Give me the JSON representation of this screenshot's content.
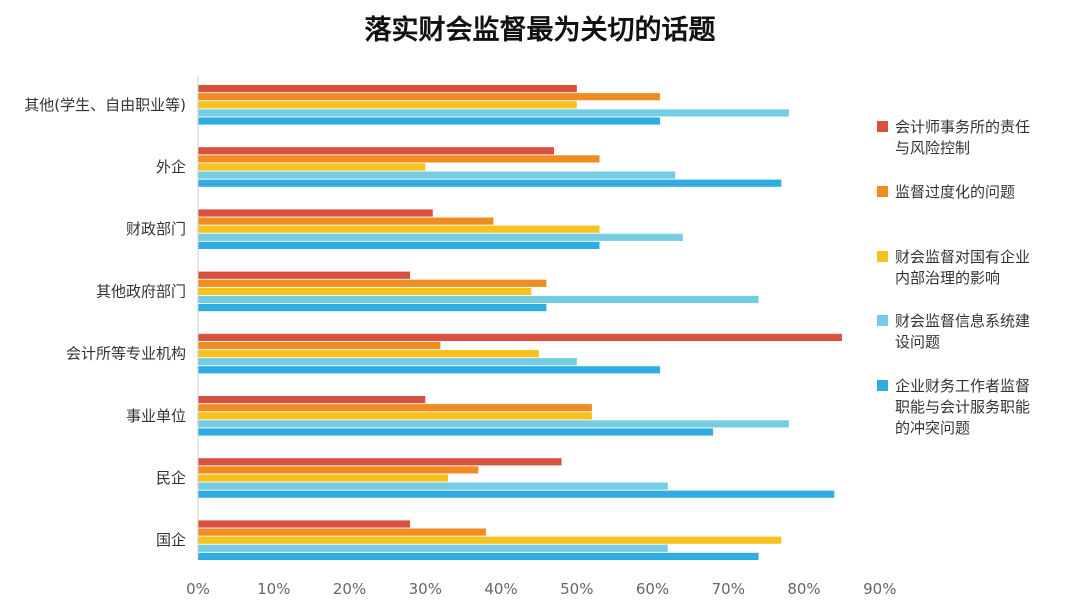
{
  "chart_data": {
    "type": "bar",
    "orientation": "horizontal",
    "title": "落实财会监督最为关切的话题",
    "categories": [
      "其他(学生、自由职业等)",
      "外企",
      "财政部门",
      "其他政府部门",
      "会计所等专业机构",
      "事业单位",
      "民企",
      "国企"
    ],
    "xlim": [
      0,
      90
    ],
    "x_ticks": [
      "0%",
      "10%",
      "20%",
      "30%",
      "40%",
      "50%",
      "60%",
      "70%",
      "80%",
      "90%"
    ],
    "legend_position": "right",
    "series": [
      {
        "name_lines": [
          "会计师事务所的责任",
          "与风险控制"
        ],
        "color": "#d9503f",
        "values": [
          50,
          47,
          31,
          28,
          85,
          30,
          48,
          28
        ]
      },
      {
        "name_lines": [
          "监督过度化的问题"
        ],
        "color": "#f18c22",
        "values": [
          61,
          53,
          39,
          46,
          32,
          52,
          37,
          38
        ]
      },
      {
        "name_lines": [
          "财会监督对国有企业",
          "内部治理的影响"
        ],
        "color": "#f7c21e",
        "values": [
          50,
          30,
          53,
          44,
          45,
          52,
          33,
          77
        ]
      },
      {
        "name_lines": [
          "财会监督信息系统建",
          "设问题"
        ],
        "color": "#74cde3",
        "values": [
          78,
          63,
          64,
          74,
          50,
          78,
          62,
          62
        ]
      },
      {
        "name_lines": [
          "企业财务工作者监督",
          "职能与会计服务职能",
          "的冲突问题"
        ],
        "color": "#31ace3",
        "values": [
          61,
          77,
          53,
          46,
          61,
          68,
          84,
          74
        ]
      }
    ]
  }
}
